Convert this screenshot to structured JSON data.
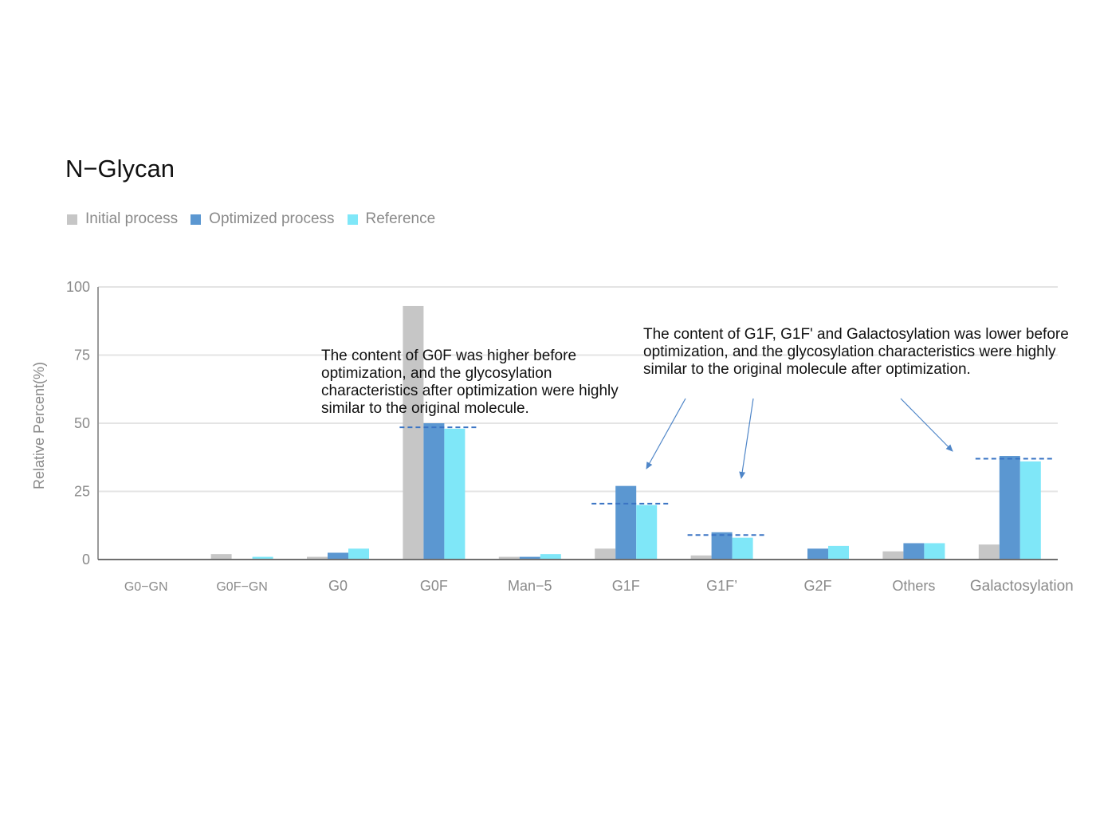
{
  "colors": {
    "initial": "#c6c6c6",
    "optimized": "#5b97d1",
    "reference": "#7fe7f8",
    "dashed": "#3a74c4",
    "axis": "#8a8a8a",
    "grid": "#e4e4e4",
    "arrow": "#4f86c8"
  },
  "chart_data": {
    "type": "bar",
    "title": "N−Glycan",
    "ylabel": "Relative Percent(%)",
    "xlabel": "",
    "ylim": [
      0,
      100
    ],
    "yticks": [
      "0",
      "25",
      "50",
      "75",
      "100"
    ],
    "grid": true,
    "legend_position": "top-left",
    "categories": [
      "G0−GN",
      "G0F−GN",
      "G0",
      "G0F",
      "Man−5",
      "G1F",
      "G1F’",
      "G2F",
      "Others",
      "Galactosylation"
    ],
    "series": [
      {
        "name": "Initial process",
        "values": [
          0,
          2,
          1,
          93,
          1,
          4,
          1.5,
          0,
          3,
          5.5
        ]
      },
      {
        "name": "Optimized process",
        "values": [
          0,
          0,
          2.5,
          50,
          1,
          27,
          10,
          4,
          6,
          38
        ]
      },
      {
        "name": "Reference",
        "values": [
          0,
          1,
          4,
          48,
          2,
          20,
          8,
          5,
          6,
          36
        ]
      }
    ],
    "reference_lines": [
      {
        "category": "G0F",
        "value": 48.5
      },
      {
        "category": "G1F",
        "value": 20.5
      },
      {
        "category": "G1F’",
        "value": 9
      },
      {
        "category": "Galactosylation",
        "value": 37
      }
    ],
    "annotations": [
      "The content of G0F was higher before optimization, and the glycosylation characteristics after optimization were highly similar to the original molecule.",
      "The content of G1F, G1F' and Galactosylation was lower before optimization, and the glycosylation characteristics were highly similar to the original molecule after optimization."
    ]
  }
}
